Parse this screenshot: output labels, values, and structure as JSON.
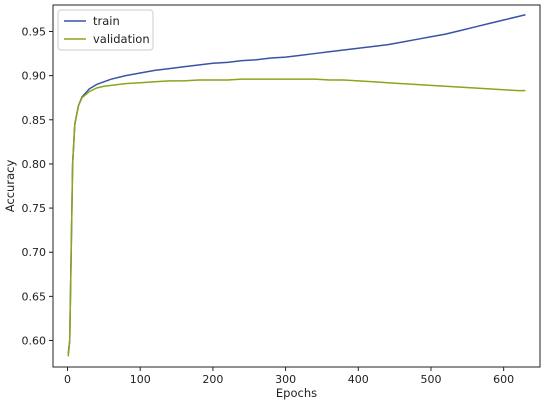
{
  "chart_data": {
    "type": "line",
    "title": "",
    "xlabel": "Epochs",
    "ylabel": "Accuracy",
    "xlim": [
      -20,
      650
    ],
    "ylim": [
      0.57,
      0.98
    ],
    "xticks": [
      0,
      100,
      200,
      300,
      400,
      500,
      600
    ],
    "yticks": [
      0.6,
      0.65,
      0.7,
      0.75,
      0.8,
      0.85,
      0.9,
      0.95
    ],
    "grid": false,
    "legend_position": "top-left",
    "series": [
      {
        "name": "train",
        "color": "#3a53a4",
        "x": [
          1,
          3,
          5,
          7,
          10,
          15,
          20,
          30,
          40,
          50,
          60,
          80,
          100,
          120,
          140,
          160,
          180,
          200,
          220,
          240,
          260,
          280,
          300,
          320,
          340,
          360,
          380,
          400,
          420,
          440,
          460,
          480,
          500,
          520,
          540,
          560,
          580,
          600,
          620,
          630
        ],
        "y": [
          0.585,
          0.6,
          0.7,
          0.8,
          0.845,
          0.866,
          0.876,
          0.885,
          0.89,
          0.893,
          0.896,
          0.9,
          0.903,
          0.906,
          0.908,
          0.91,
          0.912,
          0.914,
          0.915,
          0.917,
          0.918,
          0.92,
          0.921,
          0.923,
          0.925,
          0.927,
          0.929,
          0.931,
          0.933,
          0.935,
          0.938,
          0.941,
          0.944,
          0.947,
          0.951,
          0.955,
          0.959,
          0.963,
          0.967,
          0.969
        ]
      },
      {
        "name": "validation",
        "color": "#8aa61a",
        "x": [
          1,
          3,
          5,
          7,
          10,
          15,
          20,
          30,
          40,
          50,
          60,
          80,
          100,
          120,
          140,
          160,
          180,
          200,
          220,
          240,
          260,
          280,
          300,
          320,
          340,
          360,
          380,
          400,
          420,
          440,
          460,
          480,
          500,
          520,
          540,
          560,
          580,
          600,
          620,
          630
        ],
        "y": [
          0.582,
          0.6,
          0.7,
          0.8,
          0.845,
          0.866,
          0.875,
          0.882,
          0.886,
          0.888,
          0.889,
          0.891,
          0.892,
          0.893,
          0.894,
          0.894,
          0.895,
          0.895,
          0.895,
          0.896,
          0.896,
          0.896,
          0.896,
          0.896,
          0.896,
          0.895,
          0.895,
          0.894,
          0.893,
          0.892,
          0.891,
          0.89,
          0.889,
          0.888,
          0.887,
          0.886,
          0.885,
          0.884,
          0.883,
          0.883
        ]
      }
    ]
  }
}
